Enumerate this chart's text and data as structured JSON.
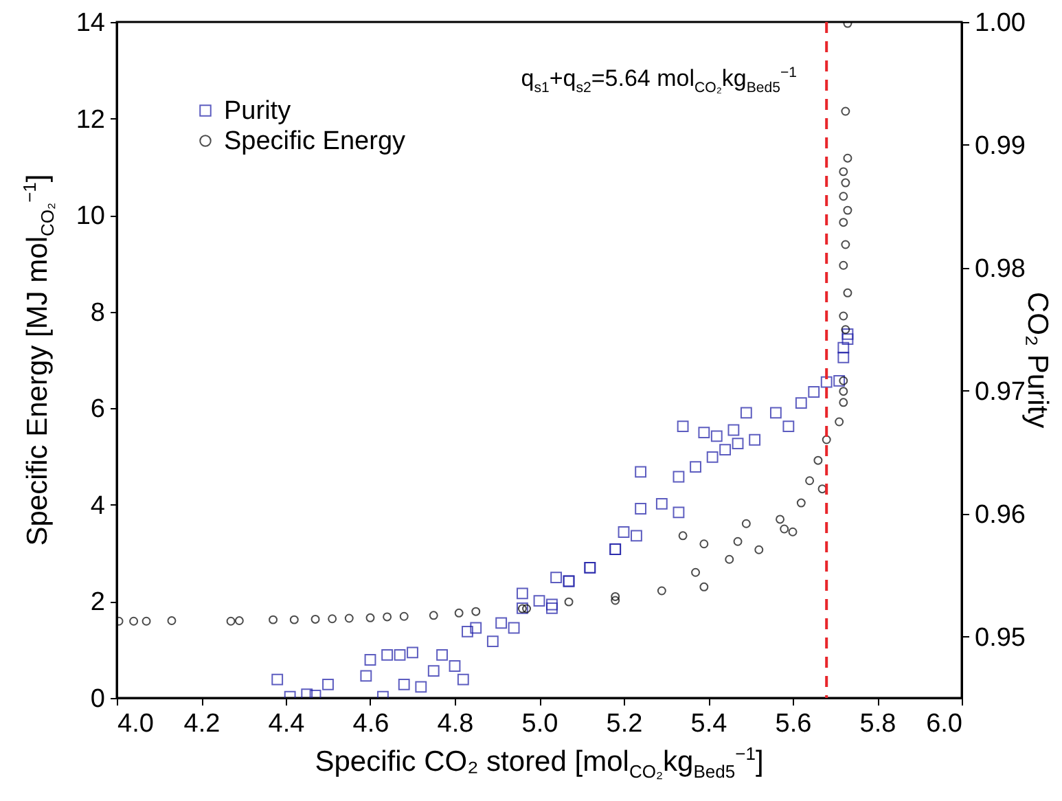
{
  "chart_data": {
    "type": "scatter",
    "xlabel": "Specific CO₂ stored [mol$_{CO₂}$kg$_{Bed5}$$^{−1}$]",
    "ylabel": "Specific Energy [MJ mol$_{CO₂}$$^{−1}$]",
    "y2label": "CO₂ Purity",
    "xlim": [
      4.0,
      6.0
    ],
    "xticks": [
      {
        "value": 4,
        "label": "4.0"
      },
      4.2,
      4.4,
      4.6,
      4.8,
      {
        "value": 5,
        "label": "5.0"
      },
      5.2,
      5.4,
      5.6,
      5.8,
      {
        "value": 6,
        "label": "6.0"
      }
    ],
    "ylim": [
      0,
      14
    ],
    "yticks": [
      0,
      2,
      4,
      6,
      8,
      10,
      12,
      14
    ],
    "y2lim": [
      0.945,
      1.0
    ],
    "y2ticks": [
      0.95,
      0.96,
      0.97,
      0.98,
      0.99,
      {
        "value": 1,
        "label": "1.00"
      }
    ],
    "grid": false,
    "legend": "top left",
    "annotations": [
      "q$_{s1}$+q$_{s2}$=5.64 mol$_{CO₂}$kg$_{Bed5}$$^{−1}$"
    ],
    "ref_lines": [
      {
        "axis": "x",
        "value": 5.68,
        "color": "#e8262b",
        "line_style": "dashed"
      }
    ],
    "series": [
      {
        "name": "Purity",
        "color": "#1a1aa6",
        "marker": "square",
        "axis": "y2",
        "x": [
          4.38,
          4.41,
          4.45,
          4.47,
          4.5,
          4.59,
          4.6,
          4.63,
          4.64,
          4.67,
          4.68,
          4.7,
          4.72,
          4.75,
          4.77,
          4.8,
          4.82,
          4.83,
          4.85,
          4.89,
          4.91,
          4.94,
          4.96,
          5.0,
          5.03,
          5.04,
          5.07,
          5.12,
          5.18,
          5.2,
          4.96,
          5.03,
          5.07,
          5.12,
          5.18,
          5.23,
          5.24,
          5.29,
          5.33,
          5.33,
          5.37,
          5.41,
          5.44,
          5.47,
          5.51,
          5.34,
          5.39,
          5.46,
          5.49,
          5.56,
          5.59,
          5.62,
          5.65,
          5.68,
          5.24,
          5.42,
          5.71,
          5.72,
          5.72,
          5.73,
          5.73
        ],
        "values": [
          0.9465,
          0.9451,
          0.9453,
          0.9452,
          0.9461,
          0.9468,
          0.9481,
          0.9451,
          0.9485,
          0.9485,
          0.9461,
          0.9487,
          0.9459,
          0.9472,
          0.9485,
          0.9476,
          0.9465,
          0.9504,
          0.9507,
          0.9496,
          0.9511,
          0.9507,
          0.9535,
          0.9529,
          0.9523,
          0.9548,
          0.9545,
          0.9556,
          0.9571,
          0.9585,
          0.9523,
          0.9526,
          0.9545,
          0.9556,
          0.9571,
          0.9582,
          0.9604,
          0.9608,
          0.9601,
          0.963,
          0.9638,
          0.9646,
          0.9652,
          0.9657,
          0.966,
          0.9671,
          0.9666,
          0.9668,
          0.9682,
          0.9682,
          0.9671,
          0.969,
          0.9699,
          0.9707,
          0.9634,
          0.9663,
          0.9708,
          0.9727,
          0.9735,
          0.9742,
          0.9746
        ]
      },
      {
        "name": "Specific Energy",
        "color": "#000000",
        "marker": "circle",
        "x": [
          4.005,
          4.04,
          4.07,
          4.13,
          4.27,
          4.29,
          4.37,
          4.42,
          4.47,
          4.51,
          4.55,
          4.6,
          4.64,
          4.68,
          4.75,
          4.81,
          4.85,
          4.96,
          5.07,
          5.18,
          4.97,
          5.18,
          5.29,
          5.37,
          5.45,
          5.52,
          5.39,
          5.34,
          5.39,
          5.47,
          5.49,
          5.57,
          5.58,
          5.6,
          5.62,
          5.64,
          5.66,
          5.67,
          5.68,
          5.71,
          5.72,
          5.72,
          5.72,
          5.725,
          5.72,
          5.73,
          5.72,
          5.725,
          5.72,
          5.73,
          5.72,
          5.725,
          5.72,
          5.73,
          5.725,
          5.73
        ],
        "values": [
          1.59,
          1.59,
          1.59,
          1.6,
          1.59,
          1.6,
          1.62,
          1.62,
          1.63,
          1.64,
          1.65,
          1.66,
          1.68,
          1.69,
          1.71,
          1.76,
          1.79,
          1.85,
          1.99,
          2.1,
          1.85,
          2.02,
          2.22,
          2.6,
          2.87,
          3.07,
          2.3,
          3.36,
          3.19,
          3.24,
          3.61,
          3.7,
          3.5,
          3.44,
          4.04,
          4.5,
          4.92,
          4.33,
          5.35,
          5.72,
          6.12,
          6.35,
          6.57,
          7.63,
          7.91,
          8.39,
          8.96,
          9.39,
          9.85,
          10.1,
          10.39,
          10.67,
          10.9,
          11.18,
          12.15,
          13.97
        ]
      }
    ]
  }
}
